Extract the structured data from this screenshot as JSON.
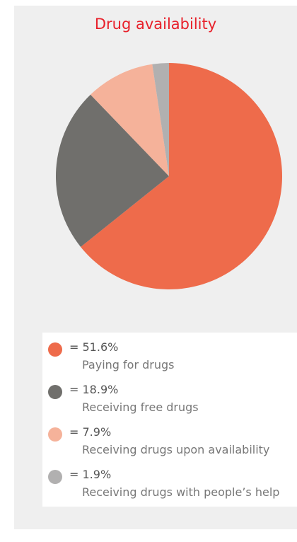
{
  "chart_data": {
    "type": "pie",
    "title": "Drug availability",
    "unit": "%",
    "slices": [
      {
        "label": "Paying for drugs",
        "value": 51.6,
        "display": "= 51.6%",
        "color": "#ee6b4b"
      },
      {
        "label": "Receiving free drugs",
        "value": 18.9,
        "display": "= 18.9%",
        "color": "#706f6c"
      },
      {
        "label": "Receiving drugs upon availability",
        "value": 7.9,
        "display": "= 7.9%",
        "color": "#f5b29a"
      },
      {
        "label": "Receiving drugs with people’s help",
        "value": 1.9,
        "display": "= 1.9%",
        "color": "#b1b0b0"
      }
    ]
  }
}
